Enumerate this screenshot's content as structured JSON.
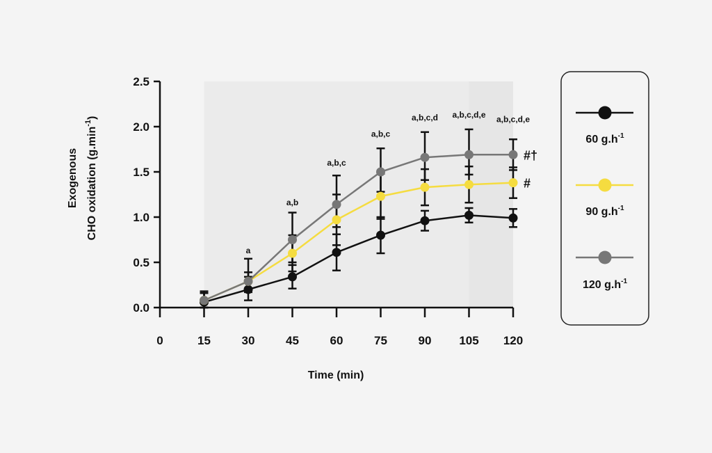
{
  "chart_data": {
    "type": "line",
    "xlabel": "Time (min)",
    "ylabel_line1": "Exogenous",
    "ylabel_line2": "CHO oxidation (g.min",
    "ylabel_sup": "-1",
    "ylabel_close": ")",
    "xlim": [
      0,
      120
    ],
    "ylim": [
      0,
      2.5
    ],
    "xticks": [
      "0",
      "15",
      "30",
      "45",
      "60",
      "75",
      "90",
      "105",
      "120"
    ],
    "xtick_values": [
      0,
      15,
      30,
      45,
      60,
      75,
      90,
      105,
      120
    ],
    "yticks": [
      "0.0",
      "0.5",
      "1.0",
      "1.5",
      "2.0",
      "2.5"
    ],
    "ytick_values": [
      0,
      0.5,
      1.0,
      1.5,
      2.0,
      2.5
    ],
    "shaded_regions": [
      {
        "x0": 15,
        "x1": 120,
        "color": "#ebebeb"
      },
      {
        "x0": 105,
        "x1": 120,
        "color": "#e6e6e6"
      }
    ],
    "x": [
      15,
      30,
      45,
      60,
      75,
      90,
      105,
      120
    ],
    "series": [
      {
        "label": "60 g.h",
        "sup": "-1",
        "color": "#111111",
        "values": [
          0.06,
          0.2,
          0.34,
          0.61,
          0.8,
          0.96,
          1.02,
          0.99
        ],
        "err_plus": [
          0.1,
          0.14,
          0.13,
          0.2,
          0.2,
          0.11,
          0.08,
          0.1
        ],
        "err_minus": [
          0.06,
          0.12,
          0.13,
          0.2,
          0.2,
          0.11,
          0.08,
          0.1
        ]
      },
      {
        "label": "90 g.h",
        "sup": "-1",
        "color": "#f5dc40",
        "values": [
          0.08,
          0.29,
          0.6,
          0.97,
          1.23,
          1.33,
          1.36,
          1.38
        ],
        "err_plus": [
          0.08,
          0.1,
          0.2,
          0.28,
          0.25,
          0.2,
          0.2,
          0.17
        ],
        "err_minus": [
          0.08,
          0.1,
          0.2,
          0.28,
          0.25,
          0.2,
          0.2,
          0.17
        ]
      },
      {
        "label": "120 g.h",
        "sup": "-1",
        "color": "#777777",
        "values": [
          0.08,
          0.29,
          0.75,
          1.14,
          1.5,
          1.66,
          1.69,
          1.69
        ],
        "err_plus": [
          0.1,
          0.25,
          0.3,
          0.32,
          0.26,
          0.28,
          0.28,
          0.17
        ],
        "err_minus": [
          0.08,
          0.12,
          0.25,
          0.25,
          0.22,
          0.25,
          0.22,
          0.17
        ]
      }
    ],
    "annotations": [
      {
        "x": 30,
        "y": 0.6,
        "text": "a"
      },
      {
        "x": 45,
        "y": 1.13,
        "text": "a,b"
      },
      {
        "x": 60,
        "y": 1.57,
        "text": "a,b,c"
      },
      {
        "x": 75,
        "y": 1.89,
        "text": "a,b,c"
      },
      {
        "x": 90,
        "y": 2.07,
        "text": "a,b,c,d"
      },
      {
        "x": 105,
        "y": 2.1,
        "text": "a,b,c,d,e"
      },
      {
        "x": 120,
        "y": 2.05,
        "text": "a,b,c,d,e"
      }
    ],
    "significance": [
      {
        "series": 2,
        "text": "#†"
      },
      {
        "series": 1,
        "text": "#"
      }
    ],
    "legend": {
      "placement": "right",
      "border_color": "#222222"
    }
  }
}
